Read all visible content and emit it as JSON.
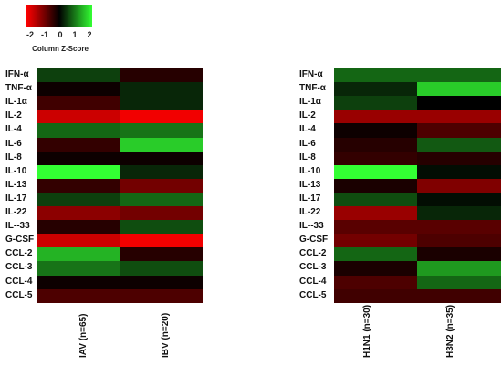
{
  "legend": {
    "title": "Column Z-Score",
    "ticks": [
      "-2",
      "-1",
      "0",
      "1",
      "2"
    ],
    "colors": {
      "low": "#ff0000",
      "mid": "#000000",
      "high": "#33ff33"
    }
  },
  "rows": [
    "IFN-α",
    "TNF-α",
    "IL-1α",
    "IL-2",
    "IL-4",
    "IL-6",
    "IL-8",
    "IL-10",
    "IL-13",
    "IL-17",
    "IL-22",
    "IL--33",
    "G-CSF",
    "CCL-2",
    "CCL-3",
    "CCL-4",
    "CCL-5"
  ],
  "chart_data": [
    {
      "type": "heatmap",
      "columns": [
        "IAV (n=65)",
        "IBV (n=20)"
      ],
      "rows": [
        "IFN-α",
        "TNF-α",
        "IL-1α",
        "IL-2",
        "IL-4",
        "IL-6",
        "IL-8",
        "IL-10",
        "IL-13",
        "IL-17",
        "IL-22",
        "IL--33",
        "G-CSF",
        "CCL-2",
        "CCL-3",
        "CCL-4",
        "CCL-5"
      ],
      "values": [
        [
          0.5,
          -0.3
        ],
        [
          -0.1,
          0.3
        ],
        [
          -0.5,
          0.3
        ],
        [
          -1.6,
          -1.9
        ],
        [
          0.8,
          0.9
        ],
        [
          -0.4,
          1.6
        ],
        [
          -0.1,
          -0.1
        ],
        [
          2.0,
          0.3
        ],
        [
          -0.4,
          -0.9
        ],
        [
          0.5,
          0.8
        ],
        [
          -1.1,
          -0.9
        ],
        [
          -0.3,
          0.6
        ],
        [
          -1.6,
          -1.9
        ],
        [
          1.4,
          -0.3
        ],
        [
          0.9,
          0.6
        ],
        [
          -0.1,
          -0.1
        ],
        [
          -0.6,
          -0.6
        ]
      ],
      "zlim": [
        -2,
        2
      ]
    },
    {
      "type": "heatmap",
      "columns": [
        "H1N1 (n=30)",
        "H3N2 (n=35)"
      ],
      "rows": [
        "IFN-α",
        "TNF-α",
        "IL-1α",
        "IL-2",
        "IL-4",
        "IL-6",
        "IL-8",
        "IL-10",
        "IL-13",
        "IL-17",
        "IL-22",
        "IL--33",
        "G-CSF",
        "CCL-2",
        "CCL-3",
        "CCL-4",
        "CCL-5"
      ],
      "values": [
        [
          0.8,
          0.8
        ],
        [
          0.3,
          1.6
        ],
        [
          0.5,
          0.0
        ],
        [
          -1.2,
          -1.2
        ],
        [
          -0.1,
          -0.6
        ],
        [
          -0.3,
          0.7
        ],
        [
          -0.4,
          -0.3
        ],
        [
          2.0,
          0.1
        ],
        [
          -0.2,
          -1.0
        ],
        [
          0.6,
          0.1
        ],
        [
          -1.2,
          0.3
        ],
        [
          -0.7,
          -0.7
        ],
        [
          -0.9,
          -0.6
        ],
        [
          0.8,
          -0.2
        ],
        [
          -0.2,
          1.2
        ],
        [
          -0.6,
          0.8
        ],
        [
          -0.5,
          -0.5
        ]
      ],
      "zlim": [
        -2,
        2
      ]
    }
  ]
}
